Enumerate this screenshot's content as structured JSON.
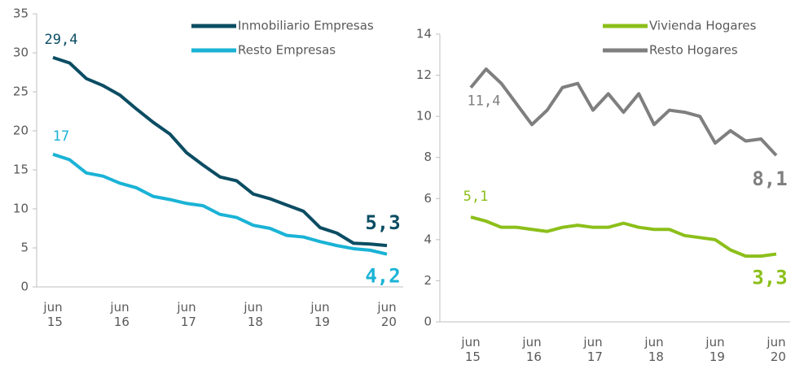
{
  "chart_data": [
    {
      "type": "line",
      "categories": [
        "jun 15",
        null,
        null,
        null,
        "jun 16",
        null,
        null,
        null,
        "jun 17",
        null,
        null,
        null,
        "jun 18",
        null,
        null,
        null,
        "jun 19",
        null,
        null,
        null,
        "jun 20"
      ],
      "ylim": [
        0,
        35
      ],
      "yticks": [
        0,
        5,
        10,
        15,
        20,
        25,
        30,
        35
      ],
      "legend": "upper right",
      "series": [
        {
          "name": "Inmobiliario Empresas",
          "color": "#0b4d63",
          "values": [
            29.4,
            28.7,
            26.7,
            25.8,
            24.6,
            22.8,
            21.1,
            19.6,
            17.2,
            15.6,
            14.1,
            13.6,
            11.9,
            11.3,
            10.5,
            9.7,
            7.6,
            6.9,
            5.6,
            5.5,
            5.3
          ],
          "value_labels": [
            "29,4",
            null,
            null,
            null,
            null,
            null,
            null,
            null,
            null,
            null,
            null,
            null,
            null,
            null,
            null,
            null,
            null,
            null,
            null,
            null,
            "5,3"
          ]
        },
        {
          "name": "Resto Empresas",
          "color": "#1ab3d6",
          "values": [
            17.0,
            16.3,
            14.6,
            14.2,
            13.3,
            12.7,
            11.6,
            11.2,
            10.7,
            10.4,
            9.3,
            8.9,
            7.9,
            7.5,
            6.6,
            6.4,
            5.8,
            5.3,
            4.9,
            4.7,
            4.2
          ],
          "value_labels": [
            "17",
            null,
            null,
            null,
            null,
            null,
            null,
            null,
            null,
            null,
            null,
            null,
            null,
            null,
            null,
            null,
            null,
            null,
            null,
            null,
            "4,2"
          ]
        }
      ]
    },
    {
      "type": "line",
      "categories": [
        "jun 15",
        null,
        null,
        null,
        "jun 16",
        null,
        null,
        null,
        "jun 17",
        null,
        null,
        null,
        "jun 18",
        null,
        null,
        null,
        "jun 19",
        null,
        null,
        null,
        "jun 20"
      ],
      "ylim": [
        0,
        14
      ],
      "yticks": [
        0,
        2,
        4,
        6,
        8,
        10,
        12,
        14
      ],
      "legend": "upper right",
      "series": [
        {
          "name": "Vivienda Hogares",
          "color": "#8cbf1a",
          "values": [
            5.1,
            4.9,
            4.6,
            4.6,
            4.5,
            4.4,
            4.6,
            4.7,
            4.6,
            4.6,
            4.8,
            4.6,
            4.5,
            4.5,
            4.2,
            4.1,
            4.0,
            3.5,
            3.2,
            3.2,
            3.3
          ],
          "value_labels": [
            "5,1",
            null,
            null,
            null,
            null,
            null,
            null,
            null,
            null,
            null,
            null,
            null,
            null,
            null,
            null,
            null,
            null,
            null,
            null,
            null,
            "3,3"
          ]
        },
        {
          "name": "Resto Hogares",
          "color": "#7f7f7f",
          "values": [
            11.4,
            12.3,
            11.6,
            10.6,
            9.6,
            10.3,
            11.4,
            11.6,
            10.3,
            11.1,
            10.2,
            11.1,
            9.6,
            10.3,
            10.2,
            10.0,
            8.7,
            9.3,
            8.8,
            8.9,
            8.1
          ],
          "value_labels": [
            "11,4",
            null,
            null,
            null,
            null,
            null,
            null,
            null,
            null,
            null,
            null,
            null,
            null,
            null,
            null,
            null,
            null,
            null,
            null,
            null,
            "8,1"
          ]
        }
      ]
    }
  ]
}
